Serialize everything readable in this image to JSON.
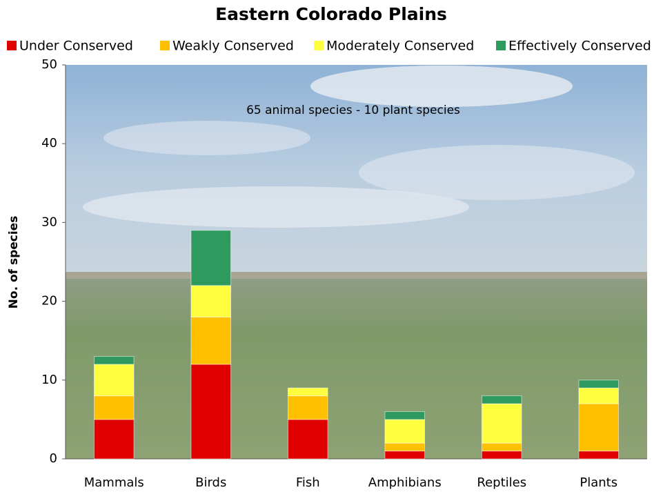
{
  "chart_data": {
    "type": "stacked-bar",
    "title": "Eastern Colorado Plains",
    "annotation": "65 animal species - 10 plant species",
    "y_label": "No. of species",
    "categories": [
      "Mammals",
      "Birds",
      "Fish",
      "Amphibians",
      "Reptiles",
      "Plants"
    ],
    "series": [
      {
        "name": "Under Conserved",
        "color": "#e00000",
        "values": [
          5,
          12,
          5,
          1,
          1,
          1
        ]
      },
      {
        "name": "Weakly Conserved",
        "color": "#ffc000",
        "values": [
          3,
          6,
          3,
          1,
          1,
          6
        ]
      },
      {
        "name": "Moderately Conserved",
        "color": "#ffff40",
        "values": [
          4,
          4,
          1,
          3,
          5,
          2
        ]
      },
      {
        "name": "Effectively Conserved",
        "color": "#2e9a5e",
        "values": [
          1,
          7,
          0,
          1,
          1,
          1
        ]
      }
    ],
    "ylim": [
      0,
      50
    ],
    "yticks": [
      0,
      10,
      20,
      30,
      40,
      50
    ],
    "legend": "top"
  }
}
